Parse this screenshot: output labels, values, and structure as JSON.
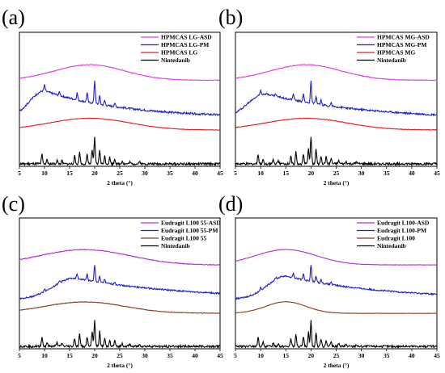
{
  "figure": {
    "panels": [
      {
        "label": "(a)",
        "xlabel": "2 theta (°)",
        "legend": [
          {
            "name": "HPMCAS LG-ASD",
            "color": "#e040e0"
          },
          {
            "name": "HPMCAS LG-PM",
            "color": "#2020c8"
          },
          {
            "name": "HPMCAS LG",
            "color": "#e02020"
          },
          {
            "name": "Nintedanib",
            "color": "#000000"
          }
        ]
      },
      {
        "label": "(b)",
        "xlabel": "2 theta (°)",
        "legend": [
          {
            "name": "HPMCAS MG-ASD",
            "color": "#e040e0"
          },
          {
            "name": "HPMCAS MG-PM",
            "color": "#2020c8"
          },
          {
            "name": "HPMCAS MG",
            "color": "#e02020"
          },
          {
            "name": "Nintedanib",
            "color": "#000000"
          }
        ]
      },
      {
        "label": "(c)",
        "xlabel": "2 theta (°)",
        "legend": [
          {
            "name": "Eudragit L100 55-ASD",
            "color": "#b030d0"
          },
          {
            "name": "Eudragit L100 55-PM",
            "color": "#2020c8"
          },
          {
            "name": "Eudragit L100 55",
            "color": "#8b3a1a"
          },
          {
            "name": "Nintedanib",
            "color": "#000000"
          }
        ]
      },
      {
        "label": "(d)",
        "xlabel": "2 theta (°)",
        "legend": [
          {
            "name": "Eudragit L100-ASD",
            "color": "#b030d0"
          },
          {
            "name": "Eudragit L100-PM",
            "color": "#2020c8"
          },
          {
            "name": "Eudragit L100",
            "color": "#8b3a1a"
          },
          {
            "name": "Nintedanib",
            "color": "#000000"
          }
        ]
      }
    ]
  },
  "chart_data": [
    {
      "type": "line",
      "xlabel": "2 theta (°)",
      "xlim": [
        5,
        45
      ],
      "x_ticks": [
        5,
        10,
        15,
        20,
        25,
        30,
        35,
        40,
        45
      ],
      "y_ticks_shown": false,
      "series": [
        {
          "name": "HPMCAS LG-ASD",
          "color": "#e040e0",
          "profile": "halo",
          "center": 19,
          "width": 7,
          "amp": 0.35,
          "base": 0.9,
          "peaks": []
        },
        {
          "name": "HPMCAS LG-PM",
          "color": "#2020c8",
          "profile": "decay",
          "center": 10,
          "width": 5,
          "amp": 0.7,
          "base": 0.25,
          "peaks": [
            [
              10,
              0.25
            ],
            [
              13,
              0.15
            ],
            [
              16.5,
              0.3
            ],
            [
              18.5,
              0.4
            ],
            [
              20,
              1.0
            ],
            [
              21,
              0.35
            ],
            [
              22,
              0.2
            ],
            [
              24,
              0.15
            ]
          ]
        },
        {
          "name": "HPMCAS LG",
          "color": "#e02020",
          "profile": "halo",
          "center": 19,
          "width": 8,
          "amp": 0.4,
          "base": 0.1,
          "peaks": []
        },
        {
          "name": "Nintedanib",
          "color": "#000000",
          "profile": "flat",
          "center": 20,
          "width": 5,
          "amp": 0,
          "base": 0.02,
          "peaks": [
            [
              9.5,
              0.35
            ],
            [
              10.5,
              0.15
            ],
            [
              12.5,
              0.15
            ],
            [
              13.5,
              0.12
            ],
            [
              16,
              0.3
            ],
            [
              17,
              0.45
            ],
            [
              18.5,
              0.35
            ],
            [
              19.5,
              0.55
            ],
            [
              20,
              1.0
            ],
            [
              21,
              0.55
            ],
            [
              22,
              0.3
            ],
            [
              23,
              0.25
            ],
            [
              24,
              0.2
            ],
            [
              25.5,
              0.12
            ],
            [
              27,
              0.08
            ],
            [
              29,
              0.08
            ]
          ]
        }
      ]
    },
    {
      "type": "line",
      "xlabel": "2 theta (°)",
      "xlim": [
        5,
        45
      ],
      "x_ticks": [
        5,
        10,
        15,
        20,
        25,
        30,
        35,
        40,
        45
      ],
      "y_ticks_shown": false,
      "series": [
        {
          "name": "HPMCAS MG-ASD",
          "color": "#e040e0",
          "profile": "halo",
          "center": 19,
          "width": 7,
          "amp": 0.35,
          "base": 0.9,
          "peaks": []
        },
        {
          "name": "HPMCAS MG-PM",
          "color": "#2020c8",
          "profile": "decay",
          "center": 11,
          "width": 6,
          "amp": 0.7,
          "base": 0.25,
          "peaks": [
            [
              10,
              0.2
            ],
            [
              13,
              0.1
            ],
            [
              16.5,
              0.3
            ],
            [
              18.5,
              0.4
            ],
            [
              20,
              1.0
            ],
            [
              21,
              0.35
            ],
            [
              22,
              0.2
            ],
            [
              24,
              0.15
            ]
          ]
        },
        {
          "name": "HPMCAS MG",
          "color": "#e02020",
          "profile": "halo",
          "center": 19,
          "width": 8,
          "amp": 0.3,
          "base": 0.1,
          "peaks": []
        },
        {
          "name": "Nintedanib",
          "color": "#000000",
          "profile": "flat",
          "center": 20,
          "width": 5,
          "amp": 0,
          "base": 0.02,
          "peaks": [
            [
              9.5,
              0.35
            ],
            [
              10.5,
              0.15
            ],
            [
              12.5,
              0.15
            ],
            [
              13.5,
              0.12
            ],
            [
              16,
              0.3
            ],
            [
              17,
              0.45
            ],
            [
              18.5,
              0.35
            ],
            [
              19.5,
              0.55
            ],
            [
              20,
              1.0
            ],
            [
              21,
              0.55
            ],
            [
              22,
              0.3
            ],
            [
              23,
              0.25
            ],
            [
              24,
              0.2
            ],
            [
              25.5,
              0.12
            ],
            [
              27,
              0.08
            ],
            [
              29,
              0.08
            ]
          ]
        }
      ]
    },
    {
      "type": "line",
      "xlabel": "2 theta (°)",
      "xlim": [
        5,
        45
      ],
      "x_ticks": [
        5,
        10,
        15,
        20,
        25,
        30,
        35,
        40,
        45
      ],
      "y_ticks_shown": false,
      "series": [
        {
          "name": "Eudragit L100 55-ASD",
          "color": "#b030d0",
          "profile": "halo",
          "center": 18,
          "width": 9,
          "amp": 0.35,
          "base": 0.9,
          "peaks": []
        },
        {
          "name": "Eudragit L100 55-PM",
          "color": "#2020c8",
          "profile": "decay",
          "center": 16,
          "width": 7,
          "amp": 0.7,
          "base": 0.25,
          "peaks": [
            [
              10,
              0.15
            ],
            [
              13,
              0.1
            ],
            [
              16.5,
              0.25
            ],
            [
              18.5,
              0.35
            ],
            [
              20,
              0.9
            ],
            [
              21,
              0.35
            ],
            [
              22,
              0.2
            ],
            [
              24,
              0.15
            ]
          ]
        },
        {
          "name": "Eudragit L100 55",
          "color": "#8b3a1a",
          "profile": "halo",
          "center": 18,
          "width": 8,
          "amp": 0.3,
          "base": 0.1,
          "peaks": []
        },
        {
          "name": "Nintedanib",
          "color": "#000000",
          "profile": "flat",
          "center": 20,
          "width": 5,
          "amp": 0,
          "base": 0.02,
          "peaks": [
            [
              9.5,
              0.35
            ],
            [
              10.5,
              0.15
            ],
            [
              12.5,
              0.15
            ],
            [
              13.5,
              0.12
            ],
            [
              16,
              0.3
            ],
            [
              17,
              0.45
            ],
            [
              18.5,
              0.35
            ],
            [
              19.5,
              0.55
            ],
            [
              20,
              1.0
            ],
            [
              21,
              0.55
            ],
            [
              22,
              0.3
            ],
            [
              23,
              0.25
            ],
            [
              24,
              0.2
            ],
            [
              25.5,
              0.12
            ],
            [
              27,
              0.08
            ],
            [
              29,
              0.08
            ]
          ]
        }
      ]
    },
    {
      "type": "line",
      "xlabel": "2 theta (°)",
      "xlim": [
        5,
        45
      ],
      "x_ticks": [
        5,
        10,
        15,
        20,
        25,
        30,
        35,
        40,
        45
      ],
      "y_ticks_shown": false,
      "series": [
        {
          "name": "Eudragit L100-ASD",
          "color": "#b030d0",
          "profile": "halo",
          "center": 15,
          "width": 6,
          "amp": 0.6,
          "base": 0.9,
          "peaks": []
        },
        {
          "name": "Eudragit L100-PM",
          "color": "#2020c8",
          "profile": "decay",
          "center": 15,
          "width": 6,
          "amp": 0.75,
          "base": 0.25,
          "peaks": [
            [
              10,
              0.15
            ],
            [
              13,
              0.1
            ],
            [
              16.5,
              0.25
            ],
            [
              18.5,
              0.35
            ],
            [
              20,
              0.9
            ],
            [
              21,
              0.35
            ],
            [
              22,
              0.2
            ],
            [
              24,
              0.15
            ]
          ]
        },
        {
          "name": "Eudragit L100",
          "color": "#8b3a1a",
          "profile": "halo",
          "center": 15,
          "width": 4,
          "amp": 0.7,
          "base": 0.1,
          "peaks": []
        },
        {
          "name": "Nintedanib",
          "color": "#000000",
          "profile": "flat",
          "center": 20,
          "width": 5,
          "amp": 0,
          "base": 0.02,
          "peaks": [
            [
              9.5,
              0.35
            ],
            [
              10.5,
              0.15
            ],
            [
              12.5,
              0.15
            ],
            [
              13.5,
              0.12
            ],
            [
              16,
              0.3
            ],
            [
              17,
              0.45
            ],
            [
              18.5,
              0.35
            ],
            [
              19.5,
              0.55
            ],
            [
              20,
              1.0
            ],
            [
              21,
              0.55
            ],
            [
              22,
              0.3
            ],
            [
              23,
              0.25
            ],
            [
              24,
              0.2
            ],
            [
              25.5,
              0.12
            ],
            [
              27,
              0.08
            ],
            [
              29,
              0.08
            ]
          ]
        }
      ]
    }
  ]
}
